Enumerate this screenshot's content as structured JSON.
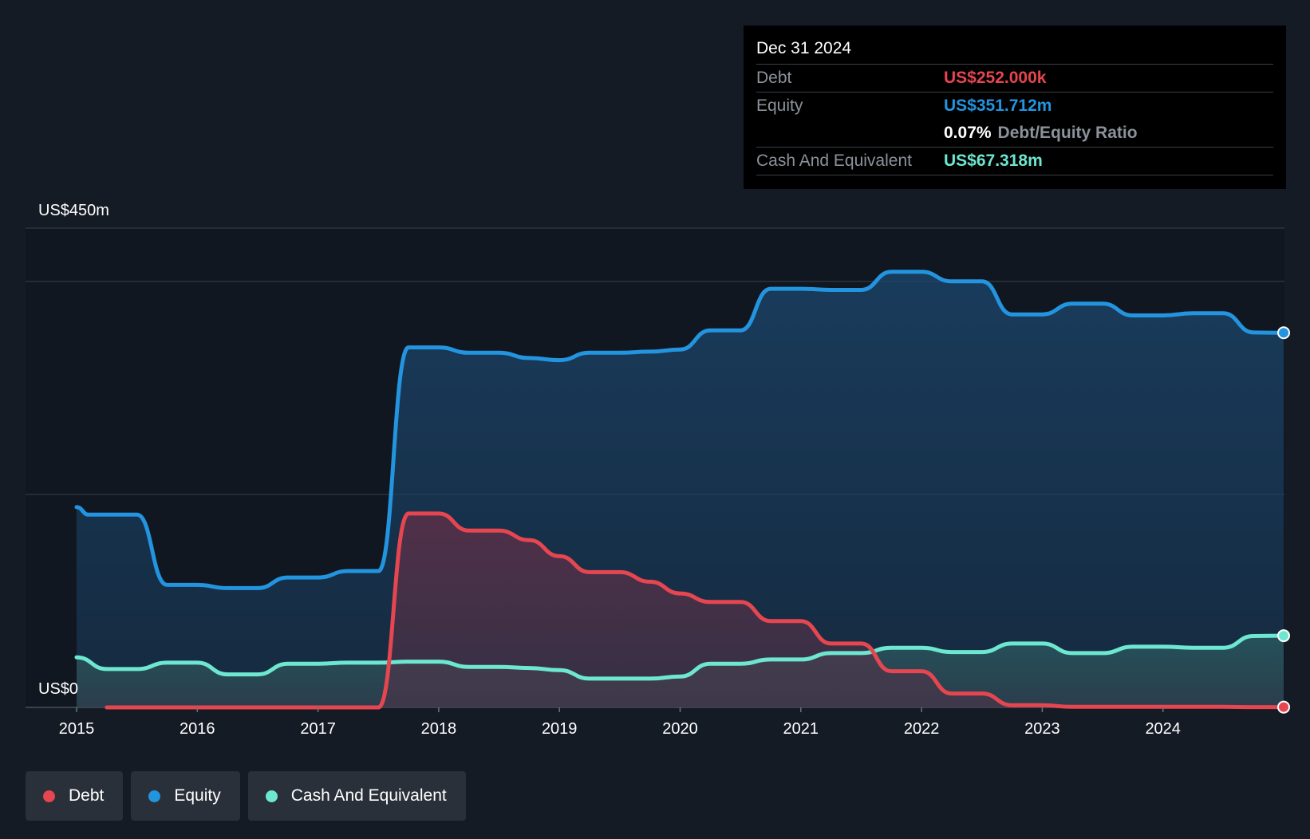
{
  "tooltip": {
    "date": "Dec 31 2024",
    "debt_label": "Debt",
    "debt_value": "US$252.000k",
    "equity_label": "Equity",
    "equity_value": "US$351.712m",
    "ratio_value": "0.07%",
    "ratio_label": "Debt/Equity Ratio",
    "cash_label": "Cash And Equivalent",
    "cash_value": "US$67.318m"
  },
  "legend": [
    {
      "label": "Debt",
      "color": "#e5464f"
    },
    {
      "label": "Equity",
      "color": "#2394df"
    },
    {
      "label": "Cash And Equivalent",
      "color": "#6de7d0"
    }
  ],
  "colors": {
    "background": "#151b24",
    "plot_background": "#111720",
    "debt": "#e5464f",
    "equity": "#2394df",
    "cash": "#6de7d0"
  },
  "chart_data": {
    "type": "area",
    "ylabel_top": "US$450m",
    "ylabel_bottom": "US$0",
    "ylim": [
      0,
      450
    ],
    "xlim": [
      2015.0,
      2025.0
    ],
    "x_ticks": [
      "2015",
      "2016",
      "2017",
      "2018",
      "2019",
      "2020",
      "2021",
      "2022",
      "2023",
      "2024"
    ],
    "grid": true,
    "series": [
      {
        "name": "Equity",
        "points": [
          [
            2015.0,
            188
          ],
          [
            2015.1,
            181
          ],
          [
            2015.25,
            181
          ],
          [
            2015.5,
            181
          ],
          [
            2015.75,
            115
          ],
          [
            2016.0,
            115
          ],
          [
            2016.25,
            112
          ],
          [
            2016.5,
            112
          ],
          [
            2016.75,
            122
          ],
          [
            2017.0,
            122
          ],
          [
            2017.25,
            128
          ],
          [
            2017.5,
            128
          ],
          [
            2017.75,
            338
          ],
          [
            2018.0,
            338
          ],
          [
            2018.25,
            333
          ],
          [
            2018.5,
            333
          ],
          [
            2018.75,
            328
          ],
          [
            2019.0,
            326
          ],
          [
            2019.25,
            333
          ],
          [
            2019.5,
            333
          ],
          [
            2019.75,
            334
          ],
          [
            2020.0,
            336
          ],
          [
            2020.25,
            354
          ],
          [
            2020.5,
            354
          ],
          [
            2020.75,
            393
          ],
          [
            2021.0,
            393
          ],
          [
            2021.25,
            392
          ],
          [
            2021.5,
            392
          ],
          [
            2021.75,
            409
          ],
          [
            2022.0,
            409
          ],
          [
            2022.25,
            400
          ],
          [
            2022.5,
            400
          ],
          [
            2022.75,
            369
          ],
          [
            2023.0,
            369
          ],
          [
            2023.25,
            379
          ],
          [
            2023.5,
            379
          ],
          [
            2023.75,
            368
          ],
          [
            2024.0,
            368
          ],
          [
            2024.25,
            370
          ],
          [
            2024.5,
            370
          ],
          [
            2024.75,
            352
          ],
          [
            2025.0,
            351.712
          ]
        ]
      },
      {
        "name": "Cash And Equivalent",
        "points": [
          [
            2015.0,
            47
          ],
          [
            2015.25,
            36
          ],
          [
            2015.5,
            36
          ],
          [
            2015.75,
            42
          ],
          [
            2016.0,
            42
          ],
          [
            2016.25,
            31
          ],
          [
            2016.5,
            31
          ],
          [
            2016.75,
            41
          ],
          [
            2017.0,
            41
          ],
          [
            2017.25,
            42
          ],
          [
            2017.5,
            42
          ],
          [
            2017.75,
            43
          ],
          [
            2018.0,
            43
          ],
          [
            2018.25,
            38
          ],
          [
            2018.5,
            38
          ],
          [
            2018.75,
            37
          ],
          [
            2019.0,
            35
          ],
          [
            2019.25,
            27
          ],
          [
            2019.5,
            27
          ],
          [
            2019.75,
            27
          ],
          [
            2020.0,
            29
          ],
          [
            2020.25,
            41
          ],
          [
            2020.5,
            41
          ],
          [
            2020.75,
            45
          ],
          [
            2021.0,
            45
          ],
          [
            2021.25,
            51
          ],
          [
            2021.5,
            51
          ],
          [
            2021.75,
            56
          ],
          [
            2022.0,
            56
          ],
          [
            2022.25,
            52
          ],
          [
            2022.5,
            52
          ],
          [
            2022.75,
            60
          ],
          [
            2023.0,
            60
          ],
          [
            2023.25,
            51
          ],
          [
            2023.5,
            51
          ],
          [
            2023.75,
            57
          ],
          [
            2024.0,
            57
          ],
          [
            2024.25,
            56
          ],
          [
            2024.5,
            56
          ],
          [
            2024.75,
            67
          ],
          [
            2025.0,
            67.318
          ]
        ]
      },
      {
        "name": "Debt",
        "points": [
          [
            2015.25,
            0
          ],
          [
            2015.5,
            0
          ],
          [
            2016.0,
            0
          ],
          [
            2016.5,
            0
          ],
          [
            2017.0,
            0
          ],
          [
            2017.5,
            0
          ],
          [
            2017.75,
            182
          ],
          [
            2018.0,
            182
          ],
          [
            2018.25,
            166
          ],
          [
            2018.5,
            166
          ],
          [
            2018.75,
            157
          ],
          [
            2019.0,
            142
          ],
          [
            2019.25,
            127
          ],
          [
            2019.5,
            127
          ],
          [
            2019.75,
            118
          ],
          [
            2020.0,
            107
          ],
          [
            2020.25,
            99
          ],
          [
            2020.5,
            99
          ],
          [
            2020.75,
            81
          ],
          [
            2021.0,
            81
          ],
          [
            2021.25,
            60
          ],
          [
            2021.5,
            60
          ],
          [
            2021.75,
            34
          ],
          [
            2022.0,
            34
          ],
          [
            2022.25,
            13
          ],
          [
            2022.5,
            13
          ],
          [
            2022.75,
            2
          ],
          [
            2023.0,
            2
          ],
          [
            2023.25,
            0.5
          ],
          [
            2023.5,
            0.5
          ],
          [
            2023.75,
            0.5
          ],
          [
            2024.0,
            0.5
          ],
          [
            2024.25,
            0.5
          ],
          [
            2024.5,
            0.5
          ],
          [
            2024.75,
            0.3
          ],
          [
            2025.0,
            0.252
          ]
        ]
      }
    ]
  }
}
